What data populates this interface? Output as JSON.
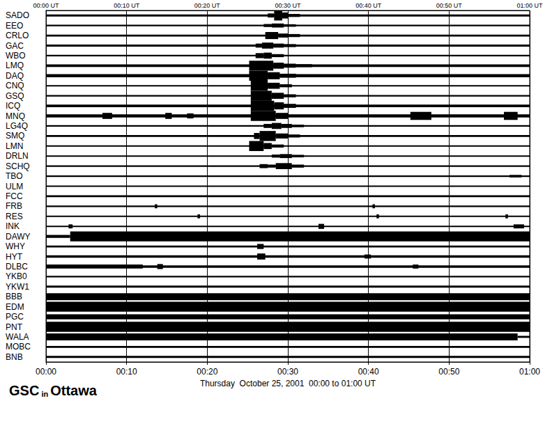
{
  "chart_data": {
    "type": "seismogram",
    "title": "GSC in Ottawa",
    "xlabel": "Thursday  October 25, 2001  00:00 to 01:00 UT",
    "xlim": [
      0,
      60
    ],
    "xticks": [
      {
        "value": 0,
        "label": "00:00"
      },
      {
        "value": 10,
        "label": "00:10"
      },
      {
        "value": 20,
        "label": "00:20"
      },
      {
        "value": 30,
        "label": "00:30"
      },
      {
        "value": 40,
        "label": "00:40"
      },
      {
        "value": 50,
        "label": "00:50"
      },
      {
        "value": 60,
        "label": "01:00"
      }
    ],
    "x2ticks": [
      {
        "value": 0,
        "label": "00:00 UT"
      },
      {
        "value": 10,
        "label": "00:10 UT"
      },
      {
        "value": 20,
        "label": "00:20 UT"
      },
      {
        "value": 30,
        "label": "00:30 UT"
      },
      {
        "value": 40,
        "label": "00:40 UT"
      },
      {
        "value": 50,
        "label": "00:50 UT"
      },
      {
        "value": 60,
        "label": "01:00 UT"
      }
    ],
    "amplitude_range": [
      0,
      10
    ],
    "grid": true,
    "color": "#000000",
    "series": [
      {
        "name": "SADO",
        "segments": [
          [
            0,
            60,
            2
          ],
          [
            27.5,
            28.3,
            4
          ],
          [
            28.3,
            29.3,
            10
          ],
          [
            29.3,
            30,
            6
          ],
          [
            30,
            31.5,
            3
          ]
        ]
      },
      {
        "name": "EEO",
        "segments": [
          [
            0,
            60,
            1.5
          ],
          [
            27,
            28,
            3
          ],
          [
            28,
            29.5,
            4
          ],
          [
            29.5,
            31,
            2.5
          ]
        ]
      },
      {
        "name": "CRLO",
        "segments": [
          [
            0,
            60,
            2
          ],
          [
            27.2,
            28.8,
            7
          ],
          [
            28.8,
            30,
            4
          ],
          [
            30,
            31.5,
            3
          ]
        ]
      },
      {
        "name": "GAC",
        "segments": [
          [
            0,
            60,
            2
          ],
          [
            26,
            26.8,
            4
          ],
          [
            26.8,
            28.2,
            6
          ],
          [
            28.2,
            29.5,
            4
          ],
          [
            29.5,
            31,
            3
          ]
        ]
      },
      {
        "name": "WBO",
        "segments": [
          [
            0,
            60,
            1.5
          ],
          [
            26,
            27,
            5
          ],
          [
            27,
            28,
            6
          ],
          [
            28,
            29.5,
            3
          ]
        ]
      },
      {
        "name": "LMQ",
        "segments": [
          [
            0,
            60,
            2.5
          ],
          [
            25.2,
            28.2,
            10
          ],
          [
            28.2,
            29.5,
            6
          ],
          [
            29.5,
            31,
            4
          ],
          [
            31,
            33,
            3
          ]
        ]
      },
      {
        "name": "DAQ",
        "segments": [
          [
            0,
            60,
            3
          ],
          [
            25.2,
            27.5,
            10
          ],
          [
            27.5,
            29,
            7
          ],
          [
            29,
            31,
            4
          ]
        ]
      },
      {
        "name": "CNQ",
        "segments": [
          [
            0,
            60,
            1.5
          ],
          [
            25.4,
            27.5,
            10
          ],
          [
            27.5,
            29,
            6
          ],
          [
            29,
            30.5,
            3
          ]
        ]
      },
      {
        "name": "GSQ",
        "segments": [
          [
            0,
            60,
            1.5
          ],
          [
            25.4,
            28,
            10
          ],
          [
            28,
            29.5,
            6
          ],
          [
            29.5,
            31,
            3
          ]
        ]
      },
      {
        "name": "ICQ",
        "segments": [
          [
            0,
            60,
            2.5
          ],
          [
            25.4,
            28.3,
            10
          ],
          [
            28.3,
            29.5,
            7
          ],
          [
            29.5,
            31,
            4
          ]
        ]
      },
      {
        "name": "MNQ",
        "segments": [
          [
            0,
            60,
            3
          ],
          [
            7,
            8.2,
            6
          ],
          [
            14.8,
            15.6,
            6
          ],
          [
            17.5,
            18.3,
            5
          ],
          [
            25.4,
            28.5,
            10
          ],
          [
            28.5,
            30,
            6
          ],
          [
            45.2,
            47.8,
            8
          ],
          [
            56.8,
            58.5,
            8
          ]
        ]
      },
      {
        "name": "LG4Q",
        "segments": [
          [
            0,
            60,
            1.5
          ],
          [
            27,
            28,
            4
          ],
          [
            28,
            29.2,
            6
          ],
          [
            29.2,
            30.5,
            4
          ],
          [
            30.5,
            32,
            2.5
          ]
        ]
      },
      {
        "name": "SMQ",
        "segments": [
          [
            0,
            60,
            2
          ],
          [
            25.8,
            26.5,
            6
          ],
          [
            26.5,
            28.5,
            10
          ],
          [
            28.5,
            30,
            5
          ],
          [
            30,
            31.5,
            3
          ]
        ]
      },
      {
        "name": "LMN",
        "segments": [
          [
            0,
            60,
            1.5
          ],
          [
            25.2,
            27,
            10
          ],
          [
            27,
            28,
            6
          ],
          [
            28,
            29.5,
            3
          ]
        ]
      },
      {
        "name": "DRLN",
        "segments": [
          [
            0,
            60,
            1.5
          ],
          [
            28,
            29,
            3
          ],
          [
            29,
            30.5,
            4
          ],
          [
            30.5,
            32,
            2.5
          ]
        ]
      },
      {
        "name": "SCHQ",
        "segments": [
          [
            0,
            60,
            1.5
          ],
          [
            26.5,
            27.5,
            4
          ],
          [
            27.5,
            28.5,
            3
          ],
          [
            28.5,
            30.5,
            6
          ],
          [
            30.5,
            32,
            3
          ]
        ]
      },
      {
        "name": "TBO",
        "segments": [
          [
            0,
            60,
            1.5
          ],
          [
            57.5,
            59,
            2.5
          ]
        ]
      },
      {
        "name": "ULM",
        "segments": [
          [
            0,
            60,
            1.5
          ]
        ]
      },
      {
        "name": "FCC",
        "segments": [
          [
            0,
            60,
            2
          ]
        ]
      },
      {
        "name": "FRB",
        "segments": [
          [
            0,
            60,
            1.5
          ],
          [
            13.5,
            13.8,
            4
          ],
          [
            40.5,
            40.8,
            4
          ]
        ]
      },
      {
        "name": "RES",
        "segments": [
          [
            0,
            60,
            1.5
          ],
          [
            18.8,
            19.1,
            4
          ],
          [
            41,
            41.3,
            4
          ],
          [
            57,
            57.3,
            4
          ]
        ]
      },
      {
        "name": "INK",
        "segments": [
          [
            0,
            60,
            1.5
          ],
          [
            2.8,
            3.3,
            4
          ],
          [
            33.8,
            34.5,
            5
          ],
          [
            58,
            59.3,
            4
          ]
        ]
      },
      {
        "name": "DAWY",
        "segments": [
          [
            0,
            3,
            3
          ],
          [
            3,
            60,
            10
          ]
        ]
      },
      {
        "name": "WHY",
        "segments": [
          [
            0,
            60,
            2
          ],
          [
            26.2,
            27,
            5
          ]
        ]
      },
      {
        "name": "HYT",
        "segments": [
          [
            0,
            60,
            2.5
          ],
          [
            26.2,
            27.2,
            6
          ],
          [
            39.5,
            40.3,
            4
          ]
        ]
      },
      {
        "name": "DLBC",
        "segments": [
          [
            0,
            60,
            2.5
          ],
          [
            0,
            12,
            4
          ],
          [
            13.8,
            14.5,
            5
          ],
          [
            45.5,
            46.2,
            4
          ]
        ]
      },
      {
        "name": "YKB0",
        "segments": [
          [
            0,
            60,
            1.5
          ]
        ]
      },
      {
        "name": "YKW1",
        "segments": [
          [
            0,
            60,
            2
          ]
        ]
      },
      {
        "name": "BBB",
        "segments": [
          [
            0,
            60,
            7
          ]
        ]
      },
      {
        "name": "EDM",
        "segments": [
          [
            0,
            60,
            10
          ]
        ]
      },
      {
        "name": "PGC",
        "segments": [
          [
            0,
            60,
            5
          ]
        ]
      },
      {
        "name": "PNT",
        "segments": [
          [
            0,
            60,
            10
          ]
        ]
      },
      {
        "name": "WALA",
        "segments": [
          [
            0,
            58.5,
            7
          ],
          [
            58.5,
            60,
            2
          ]
        ]
      },
      {
        "name": "MOBC",
        "segments": [
          [
            0,
            60,
            2
          ]
        ]
      },
      {
        "name": "BNB",
        "segments": [
          [
            0,
            60,
            2
          ]
        ]
      }
    ]
  }
}
